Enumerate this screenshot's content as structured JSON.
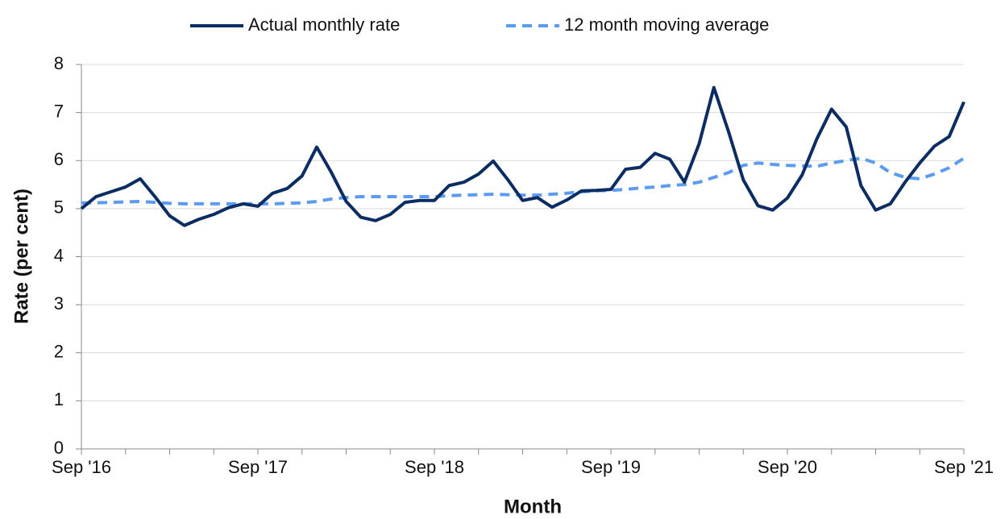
{
  "chart_data": {
    "type": "line",
    "xlabel": "Month",
    "ylabel": "Rate (per cent)",
    "categories": [
      "Sep '16",
      null,
      null,
      null,
      null,
      null,
      null,
      null,
      null,
      null,
      null,
      null,
      "Sep '17",
      null,
      null,
      null,
      null,
      null,
      null,
      null,
      null,
      null,
      null,
      null,
      "Sep '18",
      null,
      null,
      null,
      null,
      null,
      null,
      null,
      null,
      null,
      null,
      null,
      "Sep '19",
      null,
      null,
      null,
      null,
      null,
      null,
      null,
      null,
      null,
      null,
      null,
      "Sep '20",
      null,
      null,
      null,
      null,
      null,
      null,
      null,
      null,
      null,
      null,
      null,
      "Sep '21"
    ],
    "series": [
      {
        "name": "Actual monthly rate",
        "color": "#0b2d63",
        "dash": false,
        "values": [
          5.0,
          5.25,
          5.35,
          5.45,
          5.62,
          5.25,
          4.85,
          4.65,
          4.78,
          4.88,
          5.02,
          5.1,
          5.05,
          5.32,
          5.42,
          5.68,
          6.28,
          5.75,
          5.15,
          4.82,
          4.75,
          4.88,
          5.13,
          5.17,
          5.17,
          5.48,
          5.55,
          5.72,
          5.99,
          5.6,
          5.17,
          5.23,
          5.03,
          5.18,
          5.37,
          5.38,
          5.4,
          5.82,
          5.86,
          6.15,
          6.03,
          5.55,
          6.35,
          7.52,
          6.6,
          5.6,
          5.06,
          4.97,
          5.22,
          5.7,
          6.45,
          7.07,
          6.7,
          5.48,
          4.97,
          5.1,
          5.55,
          5.95,
          6.3,
          6.5,
          7.22
        ]
      },
      {
        "name": "12 month moving average",
        "color": "#5b9bf0",
        "dash": true,
        "values": [
          5.12,
          5.12,
          5.13,
          5.14,
          5.15,
          5.13,
          5.11,
          5.1,
          5.1,
          5.1,
          5.1,
          5.1,
          5.1,
          5.1,
          5.11,
          5.12,
          5.15,
          5.2,
          5.23,
          5.25,
          5.25,
          5.25,
          5.25,
          5.25,
          5.25,
          5.27,
          5.28,
          5.29,
          5.3,
          5.29,
          5.28,
          5.28,
          5.3,
          5.32,
          5.35,
          5.37,
          5.38,
          5.4,
          5.43,
          5.45,
          5.48,
          5.5,
          5.55,
          5.65,
          5.75,
          5.9,
          5.95,
          5.92,
          5.9,
          5.89,
          5.88,
          5.95,
          6.0,
          6.05,
          5.95,
          5.75,
          5.65,
          5.62,
          5.72,
          5.85,
          6.05
        ]
      }
    ],
    "ylim": [
      0,
      8
    ],
    "yticks": [
      0,
      1,
      2,
      3,
      4,
      5,
      6,
      7,
      8
    ],
    "grid": true,
    "legend": "top"
  }
}
